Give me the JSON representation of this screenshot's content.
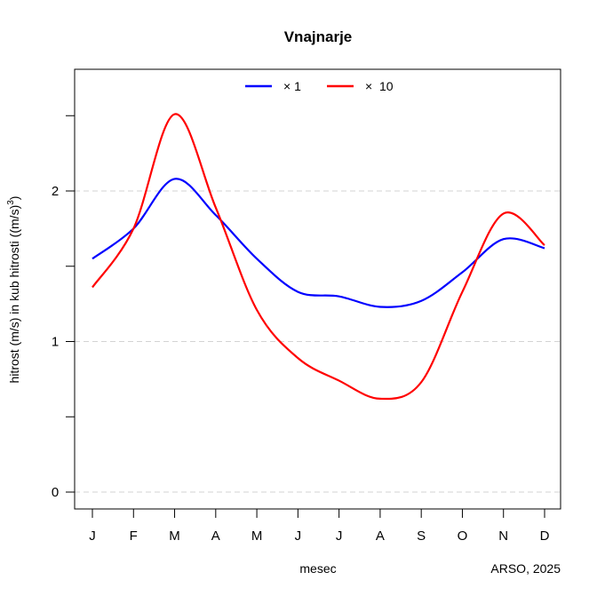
{
  "chart_data": {
    "type": "line",
    "title": "Vnajnarje",
    "xlabel": "mesec",
    "ylabel": "hitrost (m/s) in kub hitrosti ((m/s)³)",
    "ylabel_parts": {
      "main": "hitrost (m/s) in kub hitrosti ",
      "open": "((m/s)",
      "sup": "3",
      "close": ")"
    },
    "credit": "ARSO, 2025",
    "categories": [
      "J",
      "F",
      "M",
      "A",
      "M",
      "J",
      "J",
      "A",
      "S",
      "O",
      "N",
      "D"
    ],
    "ylim": [
      -0.1,
      2.8
    ],
    "yticks": [
      0,
      0.5,
      1,
      1.5,
      2,
      2.5
    ],
    "ytick_labels": [
      "0",
      "",
      "1",
      "",
      "2",
      ""
    ],
    "grid_lines": [
      0,
      1,
      2
    ],
    "grid": true,
    "legend_position": "top-center",
    "series": [
      {
        "name": "× 1",
        "color": "#0000ff",
        "values": [
          1.55,
          1.75,
          2.08,
          1.84,
          1.55,
          1.33,
          1.3,
          1.23,
          1.27,
          1.46,
          1.68,
          1.62
        ]
      },
      {
        "name": "×  10",
        "color": "#ff0000",
        "values": [
          1.36,
          1.75,
          2.51,
          1.89,
          1.21,
          0.89,
          0.74,
          0.62,
          0.73,
          1.33,
          1.85,
          1.64
        ]
      }
    ]
  }
}
